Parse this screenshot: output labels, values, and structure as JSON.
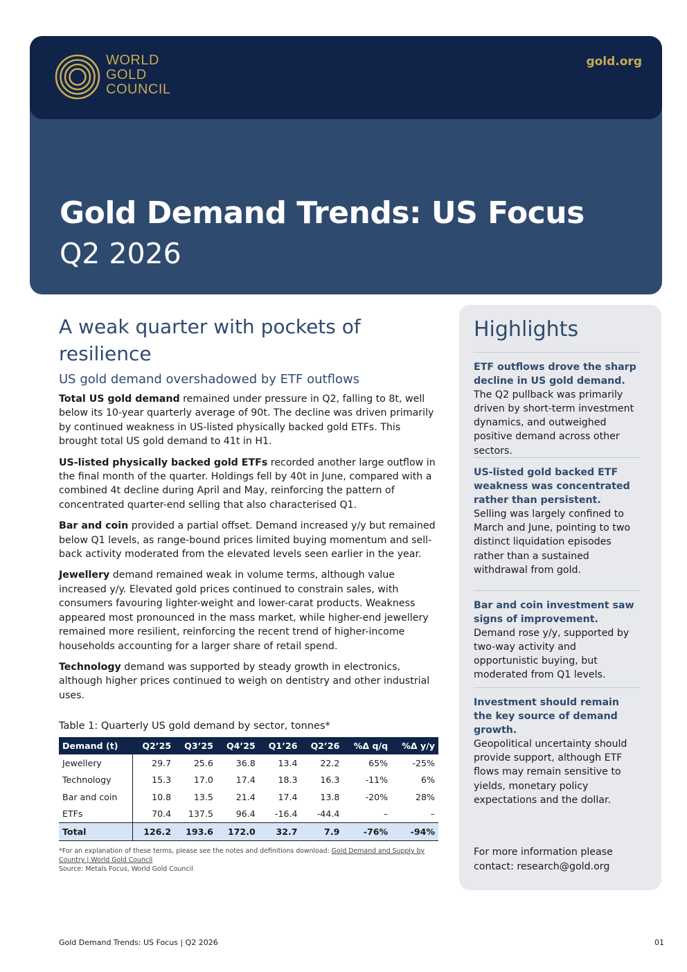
{
  "header": {
    "logo_lines": [
      "WORLD",
      "GOLD",
      "COUNCIL"
    ],
    "site": "gold.org",
    "title": "Gold Demand Trends: US Focus",
    "subtitle": "Q2 2026",
    "colors": {
      "navy": "#0f2448",
      "slate": "#2f4a6f",
      "gold": "#c9a956"
    }
  },
  "main": {
    "heading": "A weak quarter with pockets of resilience",
    "subheading": "US gold demand overshadowed by ETF outflows",
    "paragraphs": [
      {
        "lead": "Total US gold demand",
        "text": " remained under pressure in Q2, falling to 8t, well below its 10-year quarterly average of 90t. The decline was driven primarily by continued weakness in US-listed physically backed gold ETFs. This brought total US gold demand to 41t in H1."
      },
      {
        "lead": "US-listed physically backed gold ETFs",
        "text": " recorded another large outflow in the final month of the quarter. Holdings fell by 40t in June, compared with a combined 4t decline during April and May, reinforcing the pattern of concentrated quarter-end selling that also characterised Q1."
      },
      {
        "lead": "Bar and coin",
        "text": " provided a partial offset. Demand increased y/y but remained below Q1 levels, as range-bound prices limited buying momentum and sell-back activity moderated from the elevated levels seen earlier in the year."
      },
      {
        "lead": "Jewellery",
        "text": " demand remained weak in volume terms, although value increased y/y. Elevated gold prices continued to constrain sales, with consumers favouring lighter-weight and lower-carat products. Weakness appeared most pronounced in the mass market, while higher-end jewellery remained more resilient, reinforcing the recent trend of higher-income households accounting for a larger share of retail spend."
      },
      {
        "lead": "Technology",
        "text": " demand was supported by steady growth in electronics, although higher prices continued to weigh on dentistry and other industrial uses."
      }
    ]
  },
  "table": {
    "title": "Table 1: Quarterly US gold demand by sector, tonnes*",
    "headers": [
      "Demand (t)",
      "Q2’25",
      "Q3’25",
      "Q4’25",
      "Q1’26",
      "Q2’26",
      "%Δ q/q",
      "%Δ y/y"
    ],
    "rows": [
      [
        "Jewellery",
        "29.7",
        "25.6",
        "36.8",
        "13.4",
        "22.2",
        "65%",
        "-25%"
      ],
      [
        "Technology",
        "15.3",
        "17.0",
        "17.4",
        "18.3",
        "16.3",
        "-11%",
        "6%"
      ],
      [
        "Bar and coin",
        "10.8",
        "13.5",
        "21.4",
        "17.4",
        "13.8",
        "-20%",
        "28%"
      ],
      [
        "ETFs",
        "70.4",
        "137.5",
        "96.4",
        "-16.4",
        "-44.4",
        "–",
        "–"
      ],
      [
        "Total",
        "126.2",
        "193.6",
        "172.0",
        "32.7",
        "7.9",
        "-76%",
        "-94%"
      ]
    ],
    "note_prefix": "*For an explanation of these terms, please see the notes and definitions download: ",
    "note_link": "Gold Demand and Supply by Country | World Gold Council",
    "source": "Source: Metals Focus, World Gold Council"
  },
  "sidebar": {
    "title": "Highlights",
    "items": [
      {
        "head": "ETF outflows drove the sharp decline in US gold demand.",
        "body": "The Q2 pullback was primarily driven by short-term investment dynamics, and outweighed positive demand across other sectors."
      },
      {
        "head": "US-listed gold backed ETF weakness was concentrated rather than persistent.",
        "body": "Selling was largely confined to March and June, pointing to two distinct liquidation episodes rather than a sustained withdrawal from gold."
      },
      {
        "head": "Bar and coin investment saw signs of improvement.",
        "body": "Demand rose y/y, supported by two-way activity and opportunistic buying, but moderated from Q1 levels."
      },
      {
        "head": "Investment should remain the key source of demand growth.",
        "body": "Geopolitical uncertainty should provide support, although ETF flows may remain sensitive to yields, monetary policy expectations and the dollar."
      }
    ],
    "contact": "For more information please contact: research@gold.org"
  },
  "footer": {
    "left": "Gold Demand Trends: US Focus | Q2 2026",
    "page": "01"
  }
}
